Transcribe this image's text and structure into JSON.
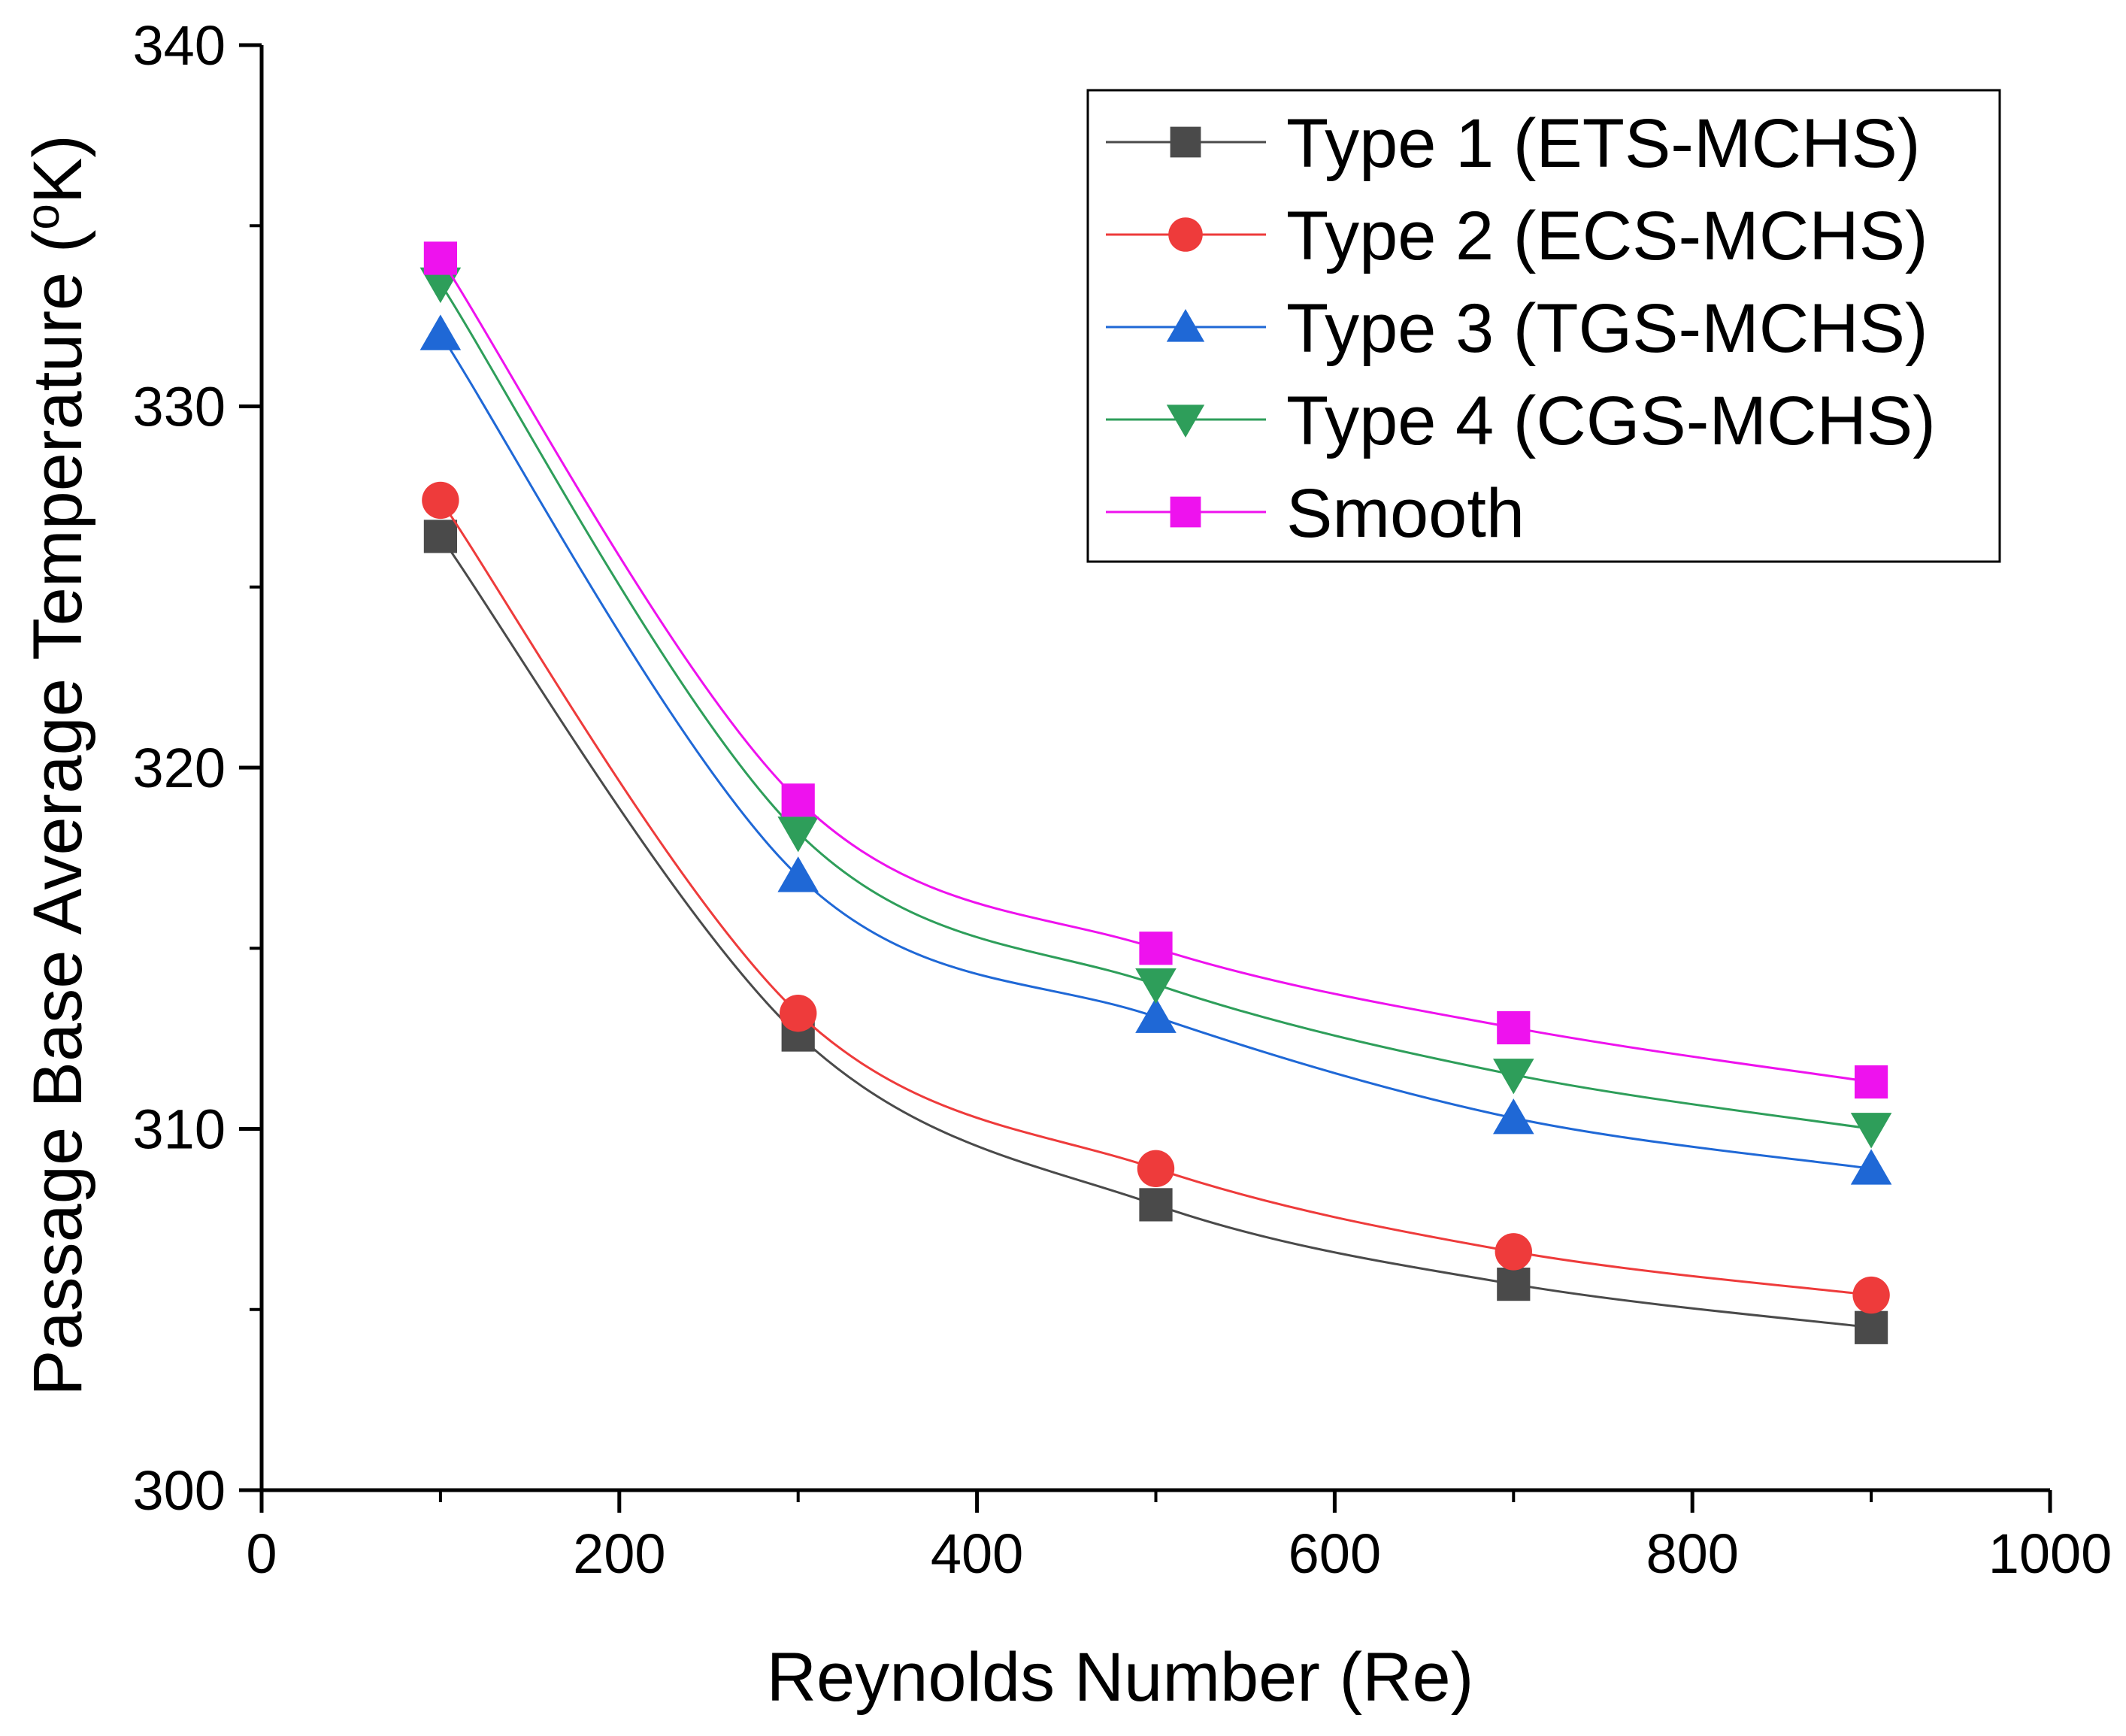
{
  "chart_data": {
    "type": "line",
    "title": "",
    "xlabel": "Reynolds Number (Re)",
    "ylabel_main": "Passage Base Average Temperature (",
    "ylabel_sup": "o",
    "ylabel_end": "K)",
    "xlim": [
      0,
      1000
    ],
    "ylim": [
      300,
      340
    ],
    "xticks": [
      0,
      200,
      400,
      600,
      800,
      1000
    ],
    "yticks": [
      300,
      310,
      320,
      330,
      340
    ],
    "grid": false,
    "legend_position": "top-right",
    "x": [
      100,
      300,
      500,
      700,
      900
    ],
    "series": [
      {
        "name": "Type 1 (ETS-MCHS)",
        "color": "#4a4a4a",
        "marker": "square",
        "values": [
          326.4,
          312.6,
          307.9,
          305.7,
          304.5
        ]
      },
      {
        "name": "Type 2 (ECS-MCHS)",
        "color": "#ee3b3b",
        "marker": "circle",
        "values": [
          327.4,
          313.2,
          308.9,
          306.6,
          305.4
        ]
      },
      {
        "name": "Type 3 (TGS-MCHS)",
        "color": "#1f68d6",
        "marker": "triangle-up",
        "values": [
          332.0,
          317.0,
          313.1,
          310.3,
          308.9
        ]
      },
      {
        "name": "Type 4 (CGS-MCHS)",
        "color": "#2e9e5a",
        "marker": "triangle-down",
        "values": [
          333.4,
          318.2,
          314.0,
          311.5,
          310.0
        ]
      },
      {
        "name": "Smooth",
        "color": "#ee12ee",
        "marker": "square",
        "values": [
          334.1,
          319.1,
          315.0,
          312.8,
          311.3
        ]
      }
    ]
  }
}
